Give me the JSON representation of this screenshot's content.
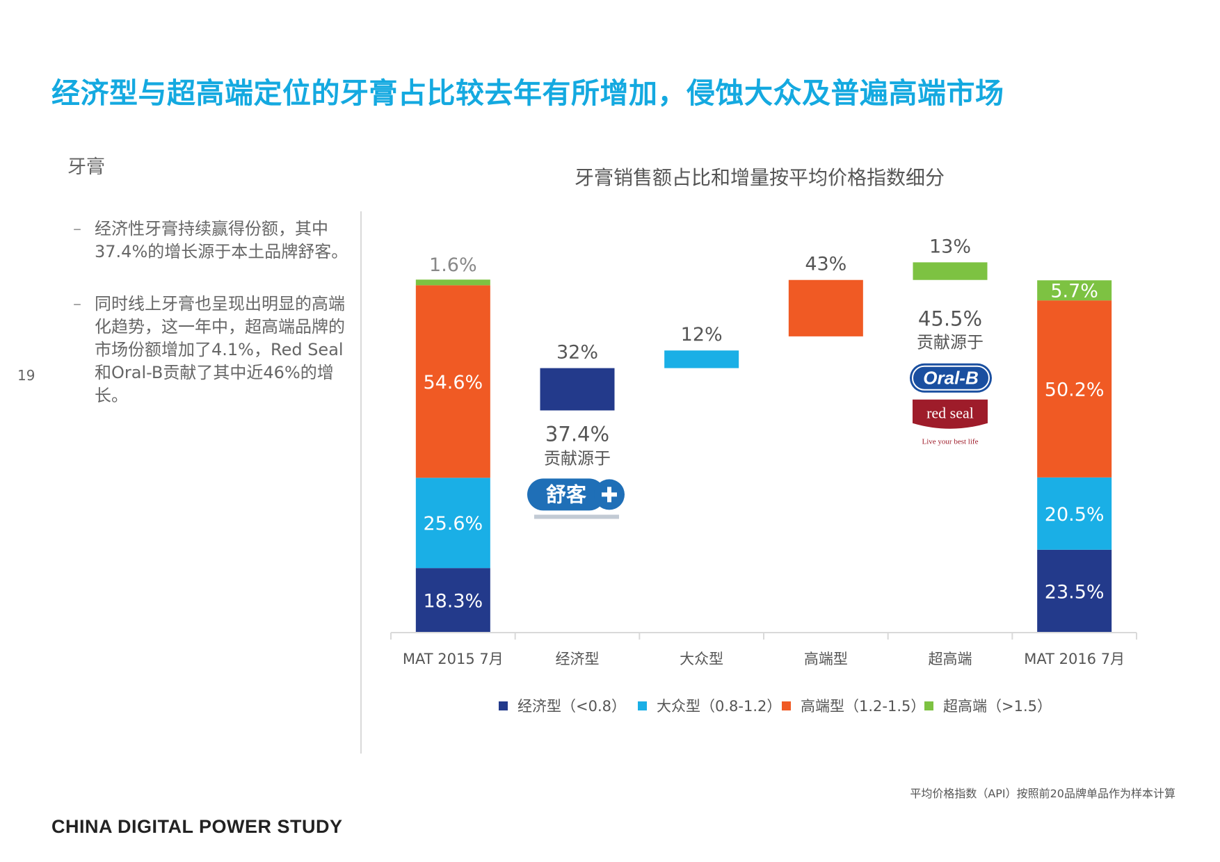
{
  "page": {
    "headline": "经济型与超高端定位的牙膏占比较去年有所增加，侵蚀大众及普遍高端市场",
    "category": "牙膏",
    "page_number": "19",
    "bullets": [
      "经济性牙膏持续赢得份额，其中37.4%的增长源于本土品牌舒客。",
      "同时线上牙膏也呈现出明显的高端化趋势，这一年中，超高端品牌的市场份额增加了4.1%，Red Seal和Oral-B贡献了其中近46%的增长。"
    ],
    "footnote": "平均价格指数（API）按照前20品牌单品作为样本计算",
    "footer_brand": "CHINA DIGITAL POWER STUDY"
  },
  "colors": {
    "accent": "#14a9e0",
    "economy": "#233a8b",
    "mass": "#1aafe6",
    "premium": "#f05a24",
    "super_premium": "#7dc242"
  },
  "chart_data": {
    "type": "bar",
    "subtype": "stacked-waterfall",
    "title": "牙膏销售额占比和增量按平均价格指数细分",
    "categories": [
      "MAT 2015 7月",
      "经济型",
      "大众型",
      "高端型",
      "超高端",
      "MAT 2016 7月"
    ],
    "series": [
      {
        "key": "economy",
        "name": "经济型（<0.8）"
      },
      {
        "key": "mass",
        "name": "大众型（0.8-1.2）"
      },
      {
        "key": "premium",
        "name": "高端型（1.2-1.5）"
      },
      {
        "key": "super_premium",
        "name": "超高端（>1.5）"
      }
    ],
    "stacks": [
      {
        "category": "MAT 2015 7月",
        "segments": [
          {
            "series": "economy",
            "value": 18.3,
            "label": "18.3%"
          },
          {
            "series": "mass",
            "value": 25.6,
            "label": "25.6%"
          },
          {
            "series": "premium",
            "value": 54.6,
            "label": "54.6%"
          },
          {
            "series": "super_premium",
            "value": 1.6,
            "label": "1.6%"
          }
        ]
      },
      {
        "category": "MAT 2016 7月",
        "segments": [
          {
            "series": "economy",
            "value": 23.5,
            "label": "23.5%"
          },
          {
            "series": "mass",
            "value": 20.5,
            "label": "20.5%"
          },
          {
            "series": "premium",
            "value": 50.2,
            "label": "50.2%"
          },
          {
            "series": "super_premium",
            "value": 5.7,
            "label": "5.7%"
          }
        ]
      }
    ],
    "increments": [
      {
        "category": "经济型",
        "series": "economy",
        "value": 32,
        "label": "32%",
        "start": 63,
        "end": 75,
        "note_value": "37.4%",
        "note_text": "贡献源于",
        "brands": [
          "舒客"
        ]
      },
      {
        "category": "大众型",
        "series": "mass",
        "value": 12,
        "label": "12%",
        "start": 75,
        "end": 80
      },
      {
        "category": "高端型",
        "series": "premium",
        "value": 43,
        "label": "43%",
        "start": 84,
        "end": 100
      },
      {
        "category": "超高端",
        "series": "super_premium",
        "value": 13,
        "label": "13%",
        "start": 100,
        "end": 105,
        "note_value": "45.5%",
        "note_text": "贡献源于",
        "brands": [
          "Oral-B",
          "red seal"
        ],
        "brand_tagline": "Live your best life"
      }
    ],
    "ylim": [
      0,
      110
    ],
    "grid": false,
    "legend_position": "bottom"
  }
}
